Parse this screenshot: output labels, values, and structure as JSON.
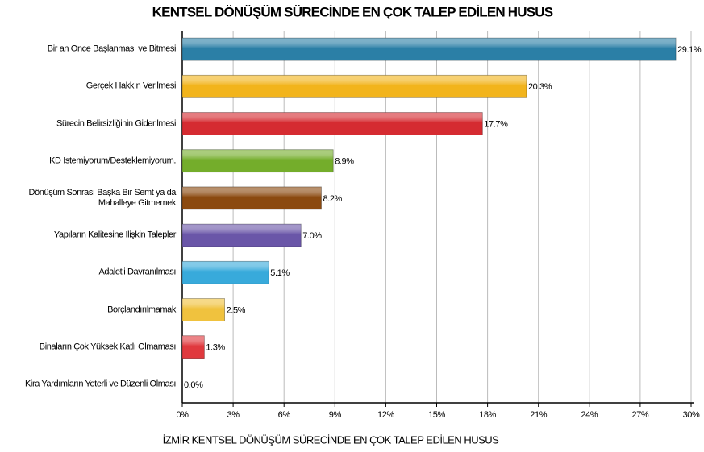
{
  "chart_data": {
    "type": "bar",
    "orientation": "horizontal",
    "title": "KENTSEL DÖNÜŞÜM SÜRECİNDE EN ÇOK TALEP EDİLEN HUSUS",
    "xlabel": "İZMİR KENTSEL DÖNÜŞÜM SÜRECİNDE EN ÇOK TALEP EDİLEN HUSUS",
    "categories": [
      "Bir an Önce Başlanması ve Bitmesi",
      "Gerçek Hakkın Verilmesi",
      "Sürecin Belirsizliğinin Giderilmesi",
      "KD İstemiyorum/Desteklemiyorum.",
      "Dönüşüm Sonrası Başka Bir Semt ya da Mahalleye Gitmemek",
      "Yapıların Kalitesine İlişkin Talepler",
      "Adaletli Davranılması",
      "Borçlandırılmamak",
      "Binaların Çok Yüksek Katlı Olmaması",
      "Kira Yardımların Yeterli ve Düzenli Olması"
    ],
    "values": [
      29.1,
      20.3,
      17.7,
      8.9,
      8.2,
      7.0,
      5.1,
      2.5,
      1.3,
      0.0
    ],
    "value_labels": [
      "29.1%",
      "20.3%",
      "17.7%",
      "8.9%",
      "8.2%",
      "7.0%",
      "5.1%",
      "2.5%",
      "1.3%",
      "0.0%"
    ],
    "colors": [
      "#2b7fa6",
      "#f2b41c",
      "#d52b31",
      "#74ad2b",
      "#8b4a10",
      "#6a56a8",
      "#38aadb",
      "#f0c23e",
      "#e0393e",
      "#999999"
    ],
    "xlim": [
      0,
      30
    ],
    "xticks": [
      {
        "value": 0,
        "label": "0%"
      },
      {
        "value": 3,
        "label": "3%"
      },
      {
        "value": 6,
        "label": "6%"
      },
      {
        "value": 9,
        "label": "9%"
      },
      {
        "value": 12,
        "label": "12%"
      },
      {
        "value": 15,
        "label": "15%"
      },
      {
        "value": 18,
        "label": "18%"
      },
      {
        "value": 21,
        "label": "21%"
      },
      {
        "value": 24,
        "label": "24%"
      },
      {
        "value": 27,
        "label": "27%"
      },
      {
        "value": 30,
        "label": "30%"
      }
    ],
    "grid": true
  }
}
